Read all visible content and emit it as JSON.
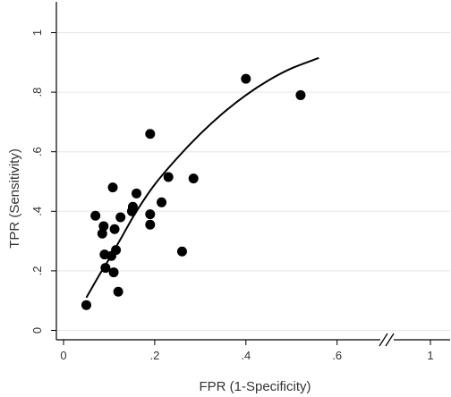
{
  "chart_data": {
    "type": "scatter",
    "xlabel": "FPR (1-Specificity)",
    "ylabel": "TPR (Sensitivity)",
    "xlim": [
      0,
      1
    ],
    "ylim": [
      0,
      1
    ],
    "x_ticks": [
      0,
      0.2,
      0.4,
      0.6,
      1
    ],
    "x_tick_labels": [
      "0",
      ".2",
      ".4",
      ".6",
      "1"
    ],
    "y_ticks": [
      0,
      0.2,
      0.4,
      0.6,
      0.8,
      1
    ],
    "y_tick_labels": [
      "0",
      ".2",
      ".4",
      ".6",
      ".8",
      "1"
    ],
    "x_axis_break": "between .6 and 1",
    "grid": "horizontal",
    "points": [
      {
        "x": 0.05,
        "y": 0.085
      },
      {
        "x": 0.07,
        "y": 0.385
      },
      {
        "x": 0.085,
        "y": 0.325
      },
      {
        "x": 0.088,
        "y": 0.35
      },
      {
        "x": 0.09,
        "y": 0.255
      },
      {
        "x": 0.092,
        "y": 0.21
      },
      {
        "x": 0.105,
        "y": 0.25
      },
      {
        "x": 0.108,
        "y": 0.48
      },
      {
        "x": 0.11,
        "y": 0.195
      },
      {
        "x": 0.112,
        "y": 0.34
      },
      {
        "x": 0.115,
        "y": 0.27
      },
      {
        "x": 0.12,
        "y": 0.13
      },
      {
        "x": 0.125,
        "y": 0.38
      },
      {
        "x": 0.15,
        "y": 0.4
      },
      {
        "x": 0.152,
        "y": 0.415
      },
      {
        "x": 0.16,
        "y": 0.46
      },
      {
        "x": 0.19,
        "y": 0.66
      },
      {
        "x": 0.19,
        "y": 0.39
      },
      {
        "x": 0.19,
        "y": 0.355
      },
      {
        "x": 0.215,
        "y": 0.43
      },
      {
        "x": 0.23,
        "y": 0.515
      },
      {
        "x": 0.26,
        "y": 0.265
      },
      {
        "x": 0.285,
        "y": 0.51
      },
      {
        "x": 0.4,
        "y": 0.845
      },
      {
        "x": 0.52,
        "y": 0.79
      }
    ],
    "curve": [
      {
        "x": 0.05,
        "y": 0.11
      },
      {
        "x": 0.08,
        "y": 0.19
      },
      {
        "x": 0.1,
        "y": 0.24
      },
      {
        "x": 0.13,
        "y": 0.32
      },
      {
        "x": 0.16,
        "y": 0.4
      },
      {
        "x": 0.2,
        "y": 0.49
      },
      {
        "x": 0.25,
        "y": 0.58
      },
      {
        "x": 0.3,
        "y": 0.66
      },
      {
        "x": 0.35,
        "y": 0.73
      },
      {
        "x": 0.4,
        "y": 0.79
      },
      {
        "x": 0.45,
        "y": 0.84
      },
      {
        "x": 0.5,
        "y": 0.88
      },
      {
        "x": 0.56,
        "y": 0.915
      }
    ],
    "colors": {
      "points": "#000000",
      "curve": "#000000",
      "grid": "#e6e6e6",
      "axis": "#000000"
    }
  }
}
